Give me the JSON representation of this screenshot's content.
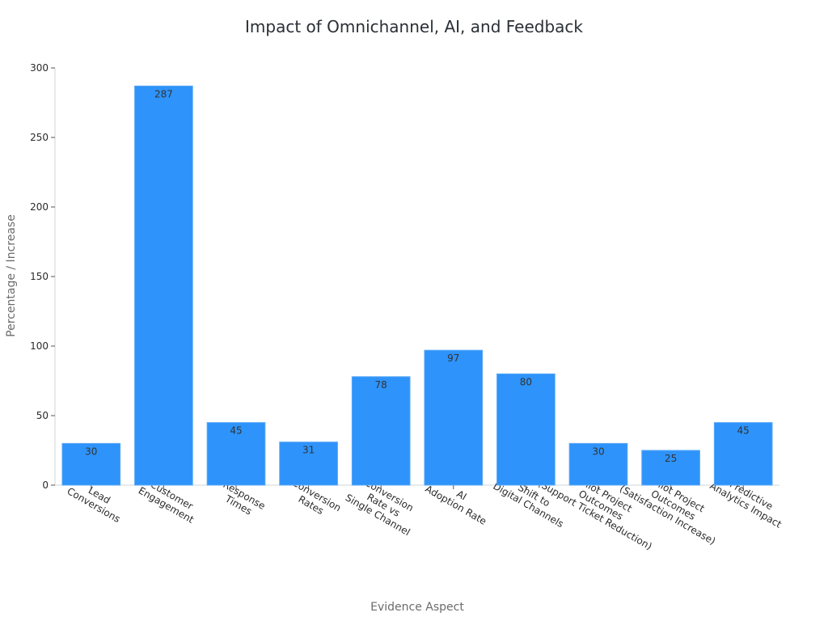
{
  "chart_data": {
    "type": "bar",
    "title": "Impact of Omnichannel, AI, and Feedback",
    "xlabel": "Evidence Aspect",
    "ylabel": "Percentage / Increase",
    "ylim": [
      0,
      300
    ],
    "yticks": [
      0,
      50,
      100,
      150,
      200,
      250,
      300
    ],
    "grid": false,
    "bar_color": "#2e93fa",
    "categories": [
      [
        "Lead",
        "Conversions"
      ],
      [
        "Customer",
        "Engagement"
      ],
      [
        "Response",
        "Times"
      ],
      [
        "Conversion",
        "Rates"
      ],
      [
        "Conversion",
        "Rate vs",
        "Single Channel"
      ],
      [
        "AI",
        "Adoption Rate"
      ],
      [
        "Shift to",
        "Digital Channels"
      ],
      [
        "Pilot Project",
        "Outcomes",
        "(Support Ticket Reduction)"
      ],
      [
        "Pilot Project",
        "Outcomes",
        "(Satisfaction Increase)"
      ],
      [
        "Predictive",
        "Analytics Impact"
      ]
    ],
    "values": [
      30,
      287,
      45,
      31,
      78,
      97,
      80,
      30,
      25,
      45
    ]
  }
}
